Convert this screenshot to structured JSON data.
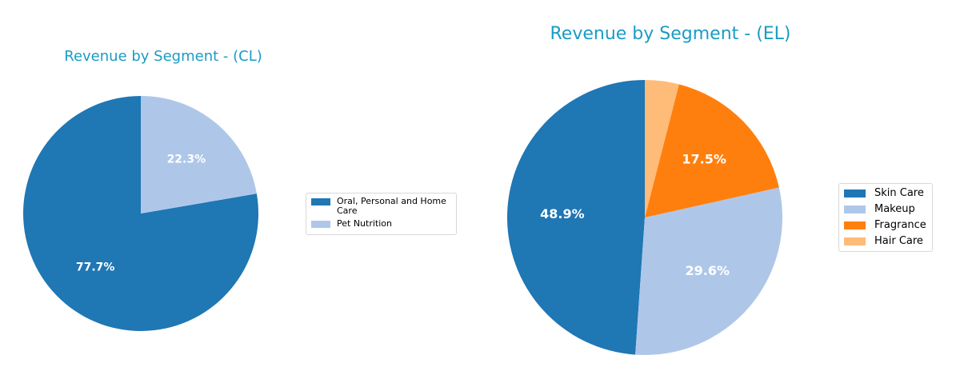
{
  "chart_data": [
    {
      "type": "pie",
      "title": "Revenue by Segment - (CL)",
      "categories": [
        "Oral, Personal and Home Care",
        "Pet Nutrition"
      ],
      "values": [
        77.7,
        22.3
      ],
      "labels": [
        "77.7%",
        "22.3%"
      ],
      "colors": [
        "#1f77b4",
        "#aec7e8"
      ],
      "start_angle": 90,
      "legend_position": "right"
    },
    {
      "type": "pie",
      "title": "Revenue by Segment - (EL)",
      "categories": [
        "Skin Care",
        "Makeup",
        "Fragrance",
        "Hair Care"
      ],
      "values": [
        48.9,
        29.6,
        17.5,
        4.0
      ],
      "labels": [
        "48.9%",
        "29.6%",
        "17.5%",
        ""
      ],
      "colors": [
        "#1f77b4",
        "#aec7e8",
        "#ff7f0e",
        "#ffbb78"
      ],
      "start_angle": 90,
      "legend_position": "right"
    }
  ],
  "charts": {
    "cl": {
      "title": "Revenue by Segment - (CL)",
      "legend": [
        {
          "label": "Oral, Personal and Home Care",
          "color": "#1f77b4"
        },
        {
          "label": "Pet Nutrition",
          "color": "#aec7e8"
        }
      ]
    },
    "el": {
      "title": "Revenue by Segment - (EL)",
      "legend": [
        {
          "label": "Skin Care",
          "color": "#1f77b4"
        },
        {
          "label": "Makeup",
          "color": "#aec7e8"
        },
        {
          "label": "Fragrance",
          "color": "#ff7f0e"
        },
        {
          "label": "Hair Care",
          "color": "#ffbb78"
        }
      ]
    }
  }
}
